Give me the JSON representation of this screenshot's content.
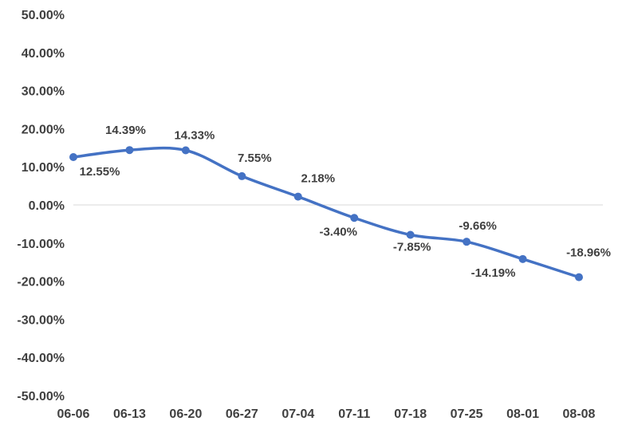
{
  "chart_data": {
    "type": "line",
    "title": "",
    "xlabel": "",
    "ylabel": "",
    "categories": [
      "06-06",
      "06-13",
      "06-20",
      "06-27",
      "07-04",
      "07-11",
      "07-18",
      "07-25",
      "08-01",
      "08-08"
    ],
    "values": [
      12.55,
      14.39,
      14.33,
      7.55,
      2.18,
      -3.4,
      -7.85,
      -9.66,
      -14.19,
      -18.96
    ],
    "data_labels": [
      "12.55%",
      "14.39%",
      "14.33%",
      "7.55%",
      "2.18%",
      "-3.40%",
      "-7.85%",
      "-9.66%",
      "-14.19%",
      "-18.96%"
    ],
    "y_ticks": [
      "50.00%",
      "40.00%",
      "30.00%",
      "20.00%",
      "10.00%",
      "0.00%",
      "-10.00%",
      "-20.00%",
      "-30.00%",
      "-40.00%",
      "-50.00%"
    ],
    "ylim": [
      -50,
      50
    ],
    "y_step": 10,
    "grid": false,
    "zero_line": true,
    "smooth": true,
    "legend": "none",
    "series_color": "#4472C4",
    "axis_color": "#D9D9D9",
    "text_color": "#404040"
  }
}
